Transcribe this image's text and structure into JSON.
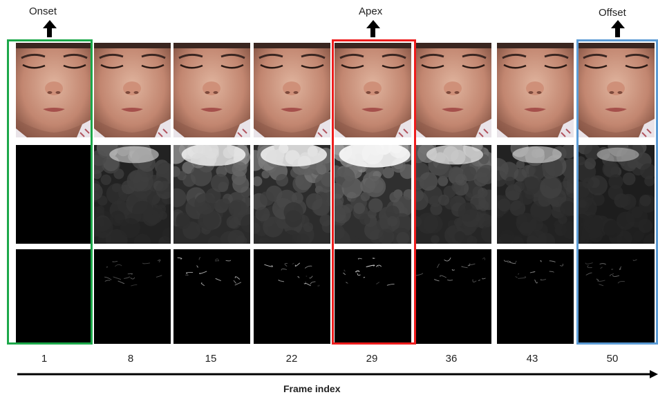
{
  "stages": {
    "onset": {
      "label": "Onset",
      "color": "#1ca84a"
    },
    "apex": {
      "label": "Apex",
      "color": "#ee1c1c"
    },
    "offset": {
      "label": "Offset",
      "color": "#5b9bd5"
    }
  },
  "frames": [
    "1",
    "8",
    "15",
    "22",
    "29",
    "36",
    "43",
    "50"
  ],
  "motion_levels": [
    0.0,
    0.45,
    0.75,
    0.8,
    0.9,
    0.6,
    0.45,
    0.3
  ],
  "axis": {
    "label": "Frame index"
  }
}
